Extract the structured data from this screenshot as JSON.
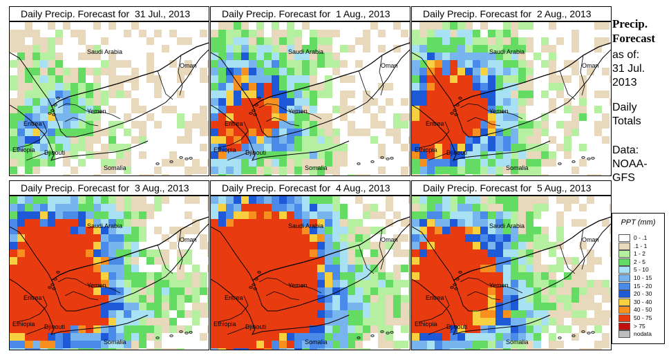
{
  "panels": [
    {
      "title": "Daily Precip. Forecast for  31 Jul., 2013",
      "level": 0.15
    },
    {
      "title": "Daily Precip. Forecast for  1 Aug., 2013",
      "level": 0.45
    },
    {
      "title": "Daily Precip. Forecast for  2 Aug., 2013",
      "level": 0.55
    },
    {
      "title": "Daily Precip. Forecast for  3 Aug., 2013",
      "level": 0.8
    },
    {
      "title": "Daily Precip. Forecast for  4 Aug., 2013",
      "level": 1.0
    },
    {
      "title": "Daily Precip. Forecast for  5 Aug., 2013",
      "level": 0.7
    }
  ],
  "map_labels": {
    "saudi": "Saudi Arabia",
    "oman": "Oman",
    "yemen": "Yemen",
    "eritrea": "Eritrea",
    "ethiopia": "Ethiopia",
    "djibouti": "Djibouti",
    "somalia": "Somalia"
  },
  "sidebar": {
    "title_line1": "Precip.",
    "title_line2": "Forecast",
    "asof_line1": "as of:",
    "asof_line2": "31 Jul.",
    "asof_line3": "2013",
    "totals_line1": "Daily",
    "totals_line2": "Totals",
    "data_line1": "Data:",
    "data_line2": "NOAA-",
    "data_line3": "GFS"
  },
  "legend": {
    "title": "PPT (mm)",
    "items": [
      {
        "label": "0 - .1",
        "color": "#ffffff"
      },
      {
        "label": ".1 - 1",
        "color": "#e8d8bc"
      },
      {
        "label": "1 - 2",
        "color": "#b4f0a0"
      },
      {
        "label": "2 - 5",
        "color": "#64dc64"
      },
      {
        "label": "5 - 10",
        "color": "#a8e0f4"
      },
      {
        "label": "10 - 15",
        "color": "#78b4ee"
      },
      {
        "label": "15 - 20",
        "color": "#4a8ae8"
      },
      {
        "label": "20 - 30",
        "color": "#1e5ad8"
      },
      {
        "label": "30 - 40",
        "color": "#f8d040"
      },
      {
        "label": "40 - 50",
        "color": "#f89020"
      },
      {
        "label": "50 - 75",
        "color": "#e83c10"
      },
      {
        "label": "> 75",
        "color": "#c01010"
      },
      {
        "label": "nodata",
        "color": "#bebebe"
      }
    ]
  }
}
